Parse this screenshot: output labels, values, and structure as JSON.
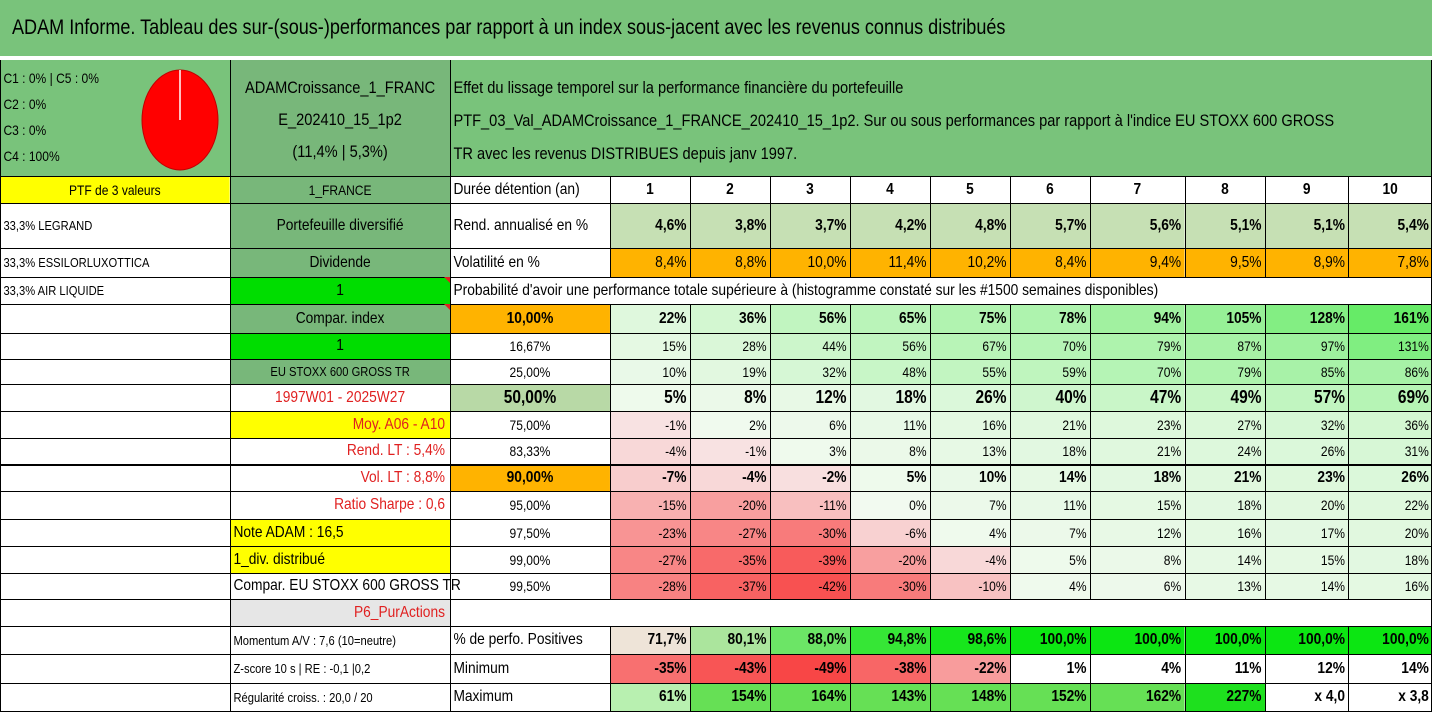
{
  "title": "ADAM Informe. Tableau des sur-(sous-)performances par rapport à un index sous-jacent avec les revenus connus distribués",
  "allocation": [
    "C1 : 0% | C5 : 0%",
    "C2 : 0%",
    "C3 : 0%",
    "C4 : 100%"
  ],
  "portfolio": {
    "name_line1": "ADAMCroissance_1_FRANC",
    "name_line2": "E_202410_15_1p2",
    "name_line3": "(11,4% | 5,3%)"
  },
  "description": [
    "Effet du lissage temporel sur la performance financière du portefeuille",
    "PTF_03_Val_ADAMCroissance_1_FRANCE_202410_15_1p2. Sur ou sous performances par rapport à l'indice EU STOXX 600 GROSS",
    "TR avec les revenus DISTRIBUES depuis janv 1997."
  ],
  "left_col": [
    "PTF de 3 valeurs",
    "33,3% LEGRAND",
    "33,3% ESSILORLUXOTTICA",
    "33,3% AIR LIQUIDE"
  ],
  "mid_col": [
    "1_FRANCE",
    "Portefeuille diversifié",
    "Dividende",
    "1",
    "Compar. index",
    "1",
    "EU STOXX 600 GROSS TR",
    "1997W01 - 2025W27",
    "Moy. A06 - A10",
    "Rend. LT : 5,4%",
    "Vol. LT : 8,8%",
    "Ratio Sharpe : 0,6",
    "Note ADAM : 16,5",
    "1_div. distribué",
    "Compar. EU STOXX 600 GROSS TR",
    "P6_PurActions",
    "Momentum A/V : 7,6 (10=neutre)",
    "Z-score 10 s | RE : -0,1 |0,2",
    "Régularité croiss. : 20,0 / 20"
  ],
  "years_label": "Durée détention (an)",
  "years": [
    "1",
    "2",
    "3",
    "4",
    "5",
    "6",
    "7",
    "8",
    "9",
    "10"
  ],
  "rend_label": "Rend. annualisé en %",
  "rend": [
    "4,6%",
    "3,8%",
    "3,7%",
    "4,2%",
    "4,8%",
    "5,7%",
    "5,6%",
    "5,1%",
    "5,1%",
    "5,4%"
  ],
  "vol_label": "Volatilité en %",
  "vol": [
    "8,4%",
    "8,8%",
    "10,0%",
    "11,4%",
    "10,2%",
    "8,4%",
    "9,4%",
    "9,5%",
    "8,9%",
    "7,8%"
  ],
  "prob_label": "Probabilité d'avoir une performance totale supérieure à (histogramme constaté sur les #1500 semaines disponibles)",
  "quantiles": [
    {
      "p": "10,00%",
      "v": [
        "22%",
        "36%",
        "56%",
        "65%",
        "75%",
        "78%",
        "94%",
        "105%",
        "128%",
        "161%"
      ]
    },
    {
      "p": "16,67%",
      "v": [
        "15%",
        "28%",
        "44%",
        "56%",
        "67%",
        "70%",
        "79%",
        "87%",
        "97%",
        "131%"
      ]
    },
    {
      "p": "25,00%",
      "v": [
        "10%",
        "19%",
        "32%",
        "48%",
        "55%",
        "59%",
        "70%",
        "79%",
        "85%",
        "86%"
      ]
    },
    {
      "p": "50,00%",
      "v": [
        "5%",
        "8%",
        "12%",
        "18%",
        "26%",
        "40%",
        "47%",
        "49%",
        "57%",
        "69%"
      ]
    },
    {
      "p": "75,00%",
      "v": [
        "-1%",
        "2%",
        "6%",
        "11%",
        "16%",
        "21%",
        "23%",
        "27%",
        "32%",
        "36%"
      ]
    },
    {
      "p": "83,33%",
      "v": [
        "-4%",
        "-1%",
        "3%",
        "8%",
        "13%",
        "18%",
        "21%",
        "24%",
        "26%",
        "31%"
      ]
    },
    {
      "p": "90,00%",
      "v": [
        "-7%",
        "-4%",
        "-2%",
        "5%",
        "10%",
        "14%",
        "18%",
        "21%",
        "23%",
        "26%"
      ]
    },
    {
      "p": "95,00%",
      "v": [
        "-15%",
        "-20%",
        "-11%",
        "0%",
        "7%",
        "11%",
        "15%",
        "18%",
        "20%",
        "22%"
      ]
    },
    {
      "p": "97,50%",
      "v": [
        "-23%",
        "-27%",
        "-30%",
        "-6%",
        "4%",
        "7%",
        "12%",
        "16%",
        "17%",
        "20%"
      ]
    },
    {
      "p": "99,00%",
      "v": [
        "-27%",
        "-35%",
        "-39%",
        "-20%",
        "-4%",
        "5%",
        "8%",
        "14%",
        "15%",
        "18%"
      ]
    },
    {
      "p": "99,50%",
      "v": [
        "-28%",
        "-37%",
        "-42%",
        "-30%",
        "-10%",
        "4%",
        "6%",
        "13%",
        "14%",
        "16%"
      ]
    }
  ],
  "positives_label": "% de perfo. Positives",
  "positives": [
    "71,7%",
    "80,1%",
    "88,0%",
    "94,8%",
    "98,6%",
    "100,0%",
    "100,0%",
    "100,0%",
    "100,0%",
    "100,0%"
  ],
  "minimum_label": "Minimum",
  "minimum": [
    "-35%",
    "-43%",
    "-49%",
    "-38%",
    "-22%",
    "1%",
    "4%",
    "11%",
    "12%",
    "14%"
  ],
  "maximum_label": "Maximum",
  "maximum": [
    "61%",
    "154%",
    "164%",
    "143%",
    "148%",
    "152%",
    "162%",
    "227%",
    "x 4,0",
    "x 3,8"
  ],
  "pie": {
    "share": 100,
    "color": "#ff0000"
  },
  "colors": {
    "green_header": "#79c37b",
    "mid_green": "#78b77a",
    "yellow": "#ffff00",
    "bright_green": "#00dd00",
    "orange": "#ffb300",
    "light_green": "#c6e0b4",
    "red_text": "#e02020"
  }
}
